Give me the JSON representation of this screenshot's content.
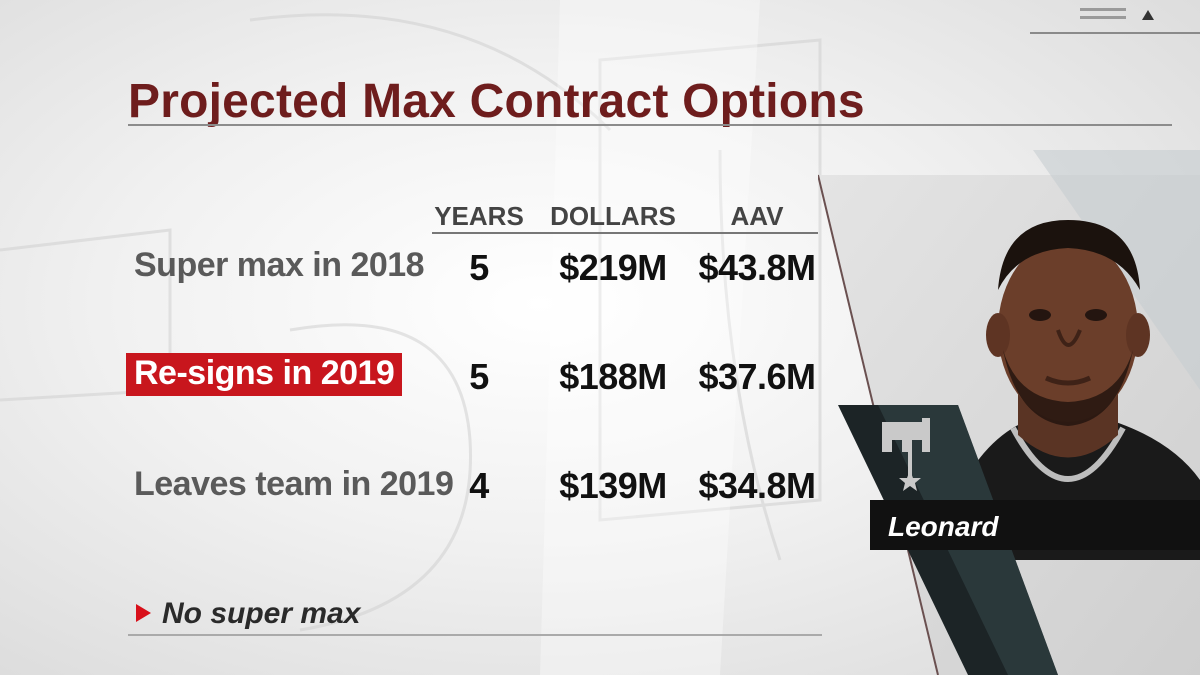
{
  "title": "Projected Max Contract Options",
  "columns": {
    "years": "YEARS",
    "dollars": "DOLLARS",
    "aav": "AAV"
  },
  "rows": [
    {
      "label": "Super max in 2018",
      "years": "5",
      "dollars": "$219M",
      "aav": "$43.8M",
      "highlighted": false
    },
    {
      "label": "Re-signs in 2019",
      "years": "5",
      "dollars": "$188M",
      "aav": "$37.6M",
      "highlighted": true
    },
    {
      "label": "Leaves team in 2019",
      "years": "4",
      "dollars": "$139M",
      "aav": "$34.8M",
      "highlighted": false
    }
  ],
  "footnote": "No super max",
  "player": {
    "name": "Leonard",
    "team_logo_icon": "spurs-logo-icon"
  },
  "colors": {
    "title": "#6e1d1d",
    "highlight": "#c8161d",
    "arrow": "#d8101a",
    "panel_dark": "#1c2426",
    "panel_teal": "#2f3f42"
  }
}
